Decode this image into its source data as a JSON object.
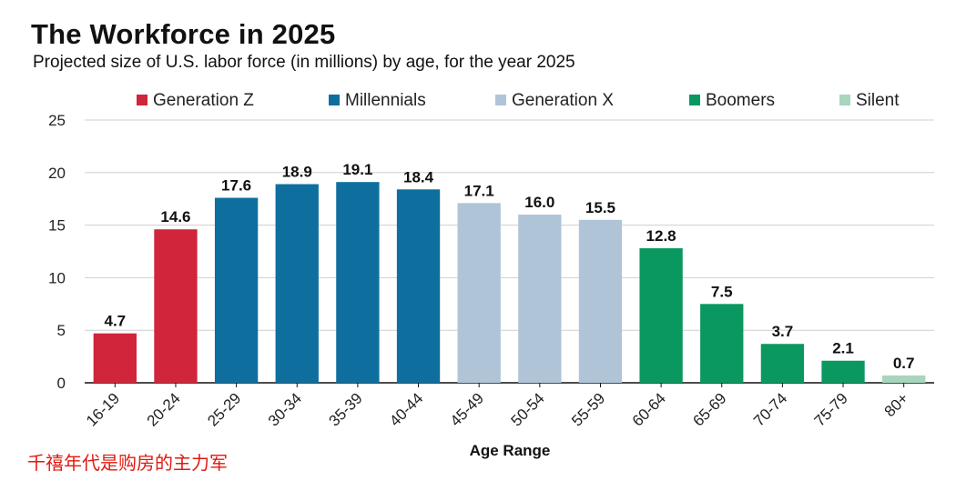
{
  "chart_data": {
    "type": "bar",
    "title": "The Workforce in 2025",
    "subtitle": "Projected size of U.S. labor force (in millions) by age, for the year 2025",
    "xlabel": "Age Range",
    "ylabel": "",
    "ylim": [
      0,
      25
    ],
    "yticks": [
      0,
      5,
      10,
      15,
      20,
      25
    ],
    "grid": true,
    "legend_position": "top",
    "categories": [
      "16-19",
      "20-24",
      "25-29",
      "30-34",
      "35-39",
      "40-44",
      "45-49",
      "50-54",
      "55-59",
      "60-64",
      "65-69",
      "70-74",
      "75-79",
      "80+"
    ],
    "values": [
      4.7,
      14.6,
      17.6,
      18.9,
      19.1,
      18.4,
      17.1,
      16.0,
      15.5,
      12.8,
      7.5,
      3.7,
      2.1,
      0.7
    ],
    "value_labels": [
      "4.7",
      "14.6",
      "17.6",
      "18.9",
      "19.1",
      "18.4",
      "17.1",
      "16.0",
      "15.5",
      "12.8",
      "7.5",
      "3.7",
      "2.1",
      "0.7"
    ],
    "groups": [
      {
        "name": "Generation Z",
        "color": "#d0253a",
        "categories": [
          "16-19",
          "20-24"
        ]
      },
      {
        "name": "Millennials",
        "color": "#0e6f9e",
        "categories": [
          "25-29",
          "30-34",
          "35-39",
          "40-44"
        ]
      },
      {
        "name": "Generation X",
        "color": "#b0c4d8",
        "categories": [
          "45-49",
          "50-54",
          "55-59"
        ]
      },
      {
        "name": "Boomers",
        "color": "#0b9860",
        "categories": [
          "60-64",
          "65-69",
          "70-74",
          "75-79"
        ]
      },
      {
        "name": "Silent",
        "color": "#a8d5bd",
        "categories": [
          "80+"
        ]
      }
    ]
  },
  "annotation": "千禧年代是购房的主力军"
}
